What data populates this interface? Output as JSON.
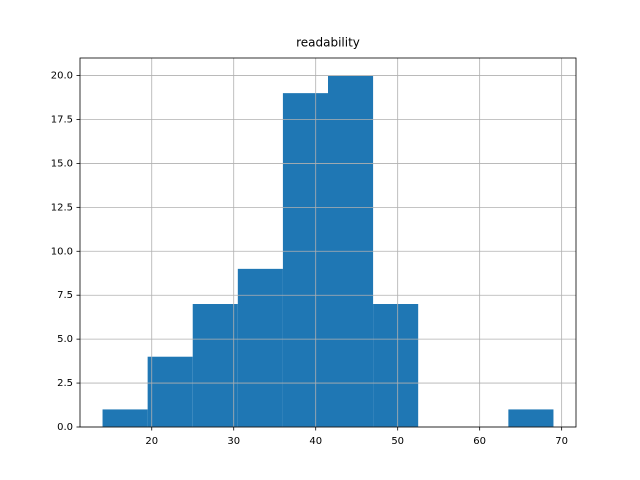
{
  "chart_data": {
    "type": "histogram",
    "title": "readability",
    "bins": [
      14.0,
      19.5,
      25.0,
      30.5,
      36.0,
      41.5,
      47.0,
      52.5,
      58.0,
      63.5,
      69.0
    ],
    "counts": [
      1,
      4,
      7,
      9,
      19,
      20,
      7,
      0,
      0,
      1
    ],
    "color": "#1f77b4",
    "xlim": [
      11.25,
      71.75
    ],
    "xticks": [
      20,
      30,
      40,
      50,
      60,
      70
    ],
    "ylim": [
      0,
      21
    ],
    "yticks": [
      {
        "value": 0,
        "label": "0.0"
      },
      {
        "value": 2.5,
        "label": "2.5"
      },
      {
        "value": 5,
        "label": "5.0"
      },
      {
        "value": 7.5,
        "label": "7.5"
      },
      {
        "value": 10,
        "label": "10.0"
      },
      {
        "value": 12.5,
        "label": "12.5"
      },
      {
        "value": 15,
        "label": "15.0"
      },
      {
        "value": 17.5,
        "label": "17.5"
      },
      {
        "value": 20,
        "label": "20.0"
      }
    ],
    "grid": true
  }
}
